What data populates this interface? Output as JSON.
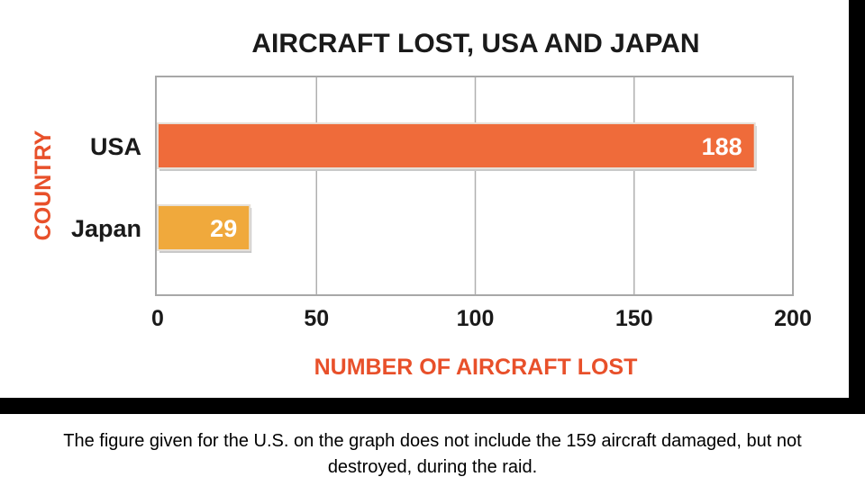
{
  "chart_data": {
    "type": "bar",
    "orientation": "horizontal",
    "title": "AIRCRAFT LOST, USA AND JAPAN",
    "xlabel": "NUMBER OF AIRCRAFT LOST",
    "ylabel": "COUNTRY",
    "categories": [
      "USA",
      "Japan"
    ],
    "values": [
      188,
      29
    ],
    "value_labels": [
      "188",
      "29"
    ],
    "bar_colors": [
      "#ef6b3a",
      "#f0a93c"
    ],
    "xlim": [
      0,
      200
    ],
    "xticks": [
      "0",
      "50",
      "100",
      "150",
      "200"
    ],
    "grid": true
  },
  "caption": "The figure given for the U.S. on the graph does not include the 159 aircraft damaged, but not destroyed, during the raid.",
  "colors": {
    "title": "#1a1a1a",
    "axis_label": "#e8502a",
    "grid": "#b0b0b0",
    "frame": "#a8a8a8"
  }
}
